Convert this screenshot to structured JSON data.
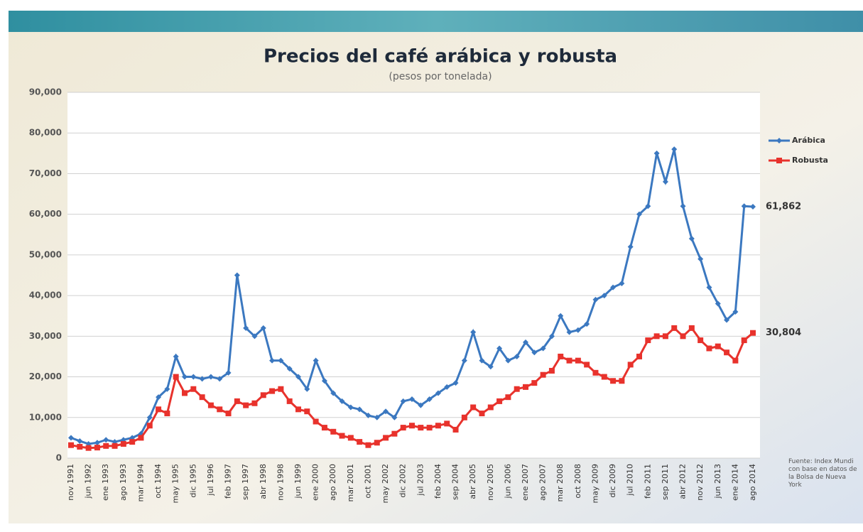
{
  "chart_data": {
    "type": "line",
    "title": "Precios del café arábica y robusta",
    "subtitle": "(pesos por tonelada)",
    "source": "Fuente: Index Mundi con base en datos de la Bolsa de Nueva York",
    "categories": [
      "nov 1991",
      null,
      "jun 1992",
      null,
      "ene 1993",
      null,
      "ago 1993",
      null,
      "mar 1994",
      null,
      "oct 1994",
      null,
      "may 1995",
      null,
      "dic 1995",
      null,
      "jul 1996",
      null,
      "feb 1997",
      null,
      "sep 1997",
      null,
      "abr 1998",
      null,
      "nov 1998",
      null,
      "jun 1999",
      null,
      "ene 2000",
      null,
      "ago 2000",
      null,
      "mar 2001",
      null,
      "oct 2001",
      null,
      "may 2002",
      null,
      "dic 2002",
      null,
      "jul 2003",
      null,
      "feb 2004",
      null,
      "sep 2004",
      null,
      "abr 2005",
      null,
      "nov 2005",
      null,
      "jun 2006",
      null,
      "ene 2007",
      null,
      "ago 2007",
      null,
      "mar 2008",
      null,
      "oct 2008",
      null,
      "may 2009",
      null,
      "dic 2009",
      null,
      "jul 2010",
      null,
      "feb 2011",
      null,
      "sep 2011",
      null,
      "abr 2012",
      null,
      "nov 2012",
      null,
      "jun 2013",
      null,
      "ene 2014",
      null,
      "ago 2014"
    ],
    "series": [
      {
        "name": "Arábica",
        "color": "#3b78c0",
        "marker": "diamond",
        "values": [
          5000,
          4200,
          3500,
          3800,
          4500,
          4000,
          4500,
          5000,
          6000,
          10000,
          15000,
          17000,
          25000,
          20000,
          20000,
          19500,
          20000,
          19500,
          21000,
          45000,
          32000,
          30000,
          32000,
          24000,
          24000,
          22000,
          20000,
          17000,
          24000,
          19000,
          16000,
          14000,
          12500,
          12000,
          10500,
          10000,
          11500,
          10000,
          14000,
          14500,
          13000,
          14500,
          16000,
          17500,
          18500,
          24000,
          31000,
          24000,
          22500,
          27000,
          24000,
          25000,
          28500,
          26000,
          27000,
          30000,
          35000,
          31000,
          31500,
          33000,
          39000,
          40000,
          42000,
          43000,
          52000,
          60000,
          62000,
          75000,
          68000,
          76000,
          62000,
          54000,
          49000,
          42000,
          38000,
          34000,
          36000,
          62000,
          61862
        ],
        "value_labels": [
          null,
          null,
          null,
          null,
          null,
          null,
          null,
          null,
          null,
          null,
          null,
          null,
          null,
          null,
          null,
          null,
          null,
          null,
          null,
          null,
          null,
          null,
          null,
          null,
          null,
          null,
          null,
          null,
          null,
          null,
          null,
          null,
          null,
          null,
          null,
          null,
          null,
          null,
          null,
          null,
          null,
          null,
          null,
          null,
          null,
          null,
          null,
          null,
          null,
          null,
          null,
          null,
          null,
          null,
          null,
          null,
          null,
          null,
          null,
          null,
          null,
          null,
          null,
          null,
          null,
          null,
          null,
          null,
          null,
          null,
          null,
          null,
          null,
          null,
          null,
          null,
          null,
          null,
          "61,862"
        ]
      },
      {
        "name": "Robusta",
        "color": "#e8322c",
        "marker": "square",
        "values": [
          3200,
          2800,
          2500,
          2600,
          3000,
          3000,
          3500,
          4000,
          5000,
          8000,
          12000,
          11000,
          20000,
          16000,
          17000,
          15000,
          13000,
          12000,
          11000,
          14000,
          13000,
          13500,
          15500,
          16500,
          17000,
          14000,
          12000,
          11500,
          9000,
          7500,
          6500,
          5500,
          5000,
          4000,
          3200,
          3800,
          5000,
          6000,
          7500,
          8000,
          7500,
          7500,
          8000,
          8500,
          7000,
          10000,
          12500,
          11000,
          12500,
          14000,
          15000,
          17000,
          17500,
          18500,
          20500,
          21500,
          25000,
          24000,
          24000,
          23000,
          21000,
          20000,
          19000,
          19000,
          23000,
          25000,
          29000,
          30000,
          30000,
          32000,
          30000,
          32000,
          29000,
          27000,
          27500,
          26000,
          24000,
          29000,
          30804
        ],
        "value_labels": [
          null,
          null,
          null,
          null,
          null,
          null,
          null,
          null,
          null,
          null,
          null,
          null,
          null,
          null,
          null,
          null,
          null,
          null,
          null,
          null,
          null,
          null,
          null,
          null,
          null,
          null,
          null,
          null,
          null,
          null,
          null,
          null,
          null,
          null,
          null,
          null,
          null,
          null,
          null,
          null,
          null,
          null,
          null,
          null,
          null,
          null,
          null,
          null,
          null,
          null,
          null,
          null,
          null,
          null,
          null,
          null,
          null,
          null,
          null,
          null,
          null,
          null,
          null,
          null,
          null,
          null,
          null,
          null,
          null,
          null,
          null,
          null,
          null,
          null,
          null,
          null,
          null,
          null,
          "30,804"
        ]
      }
    ],
    "ylim": [
      0,
      90000
    ],
    "yticks": [
      0,
      {
        "value": 10000,
        "label": "10,000"
      },
      {
        "value": 20000,
        "label": "20,000"
      },
      {
        "value": 30000,
        "label": "30,000"
      },
      {
        "value": 40000,
        "label": "40,000"
      },
      {
        "value": 50000,
        "label": "50,000"
      },
      {
        "value": 60000,
        "label": "60,000"
      },
      {
        "value": 70000,
        "label": "70,000"
      },
      {
        "value": 80000,
        "label": "80,000"
      },
      {
        "value": 90000,
        "label": "90,000"
      }
    ],
    "grid": true,
    "legend": "right"
  }
}
